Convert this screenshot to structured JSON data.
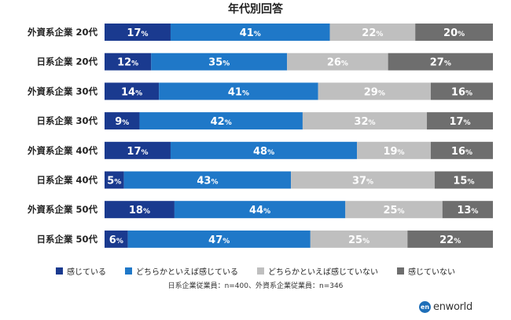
{
  "chart_data": {
    "type": "bar",
    "orientation": "horizontal",
    "stacked": true,
    "normalized": true,
    "title": "年代別回答",
    "categories": [
      "外資系企業 20代",
      "日系企業 20代",
      "外資系企業 30代",
      "日系企業 30代",
      "外資系企業 40代",
      "日系企業 40代",
      "外資系企業 50代",
      "日系企業 50代"
    ],
    "series": [
      {
        "name": "感じている",
        "color": "#1a3a8f",
        "values": [
          17,
          12,
          14,
          9,
          17,
          5,
          18,
          6
        ]
      },
      {
        "name": "どちらかといえば感じている",
        "color": "#1f78c8",
        "values": [
          41,
          35,
          41,
          42,
          48,
          43,
          44,
          47
        ]
      },
      {
        "name": "どちらかといえば感じていない",
        "color": "#bfbfbf",
        "values": [
          22,
          26,
          29,
          32,
          19,
          37,
          25,
          25
        ]
      },
      {
        "name": "感じていない",
        "color": "#6e6e6e",
        "values": [
          20,
          27,
          16,
          17,
          16,
          15,
          13,
          22
        ]
      }
    ],
    "value_suffix": "%",
    "legend_position": "bottom",
    "grid": false
  },
  "note": "日系企業従業員：n=400、外資系企業従業員：n=346",
  "logo": {
    "mark": "en",
    "text": "enworld"
  }
}
